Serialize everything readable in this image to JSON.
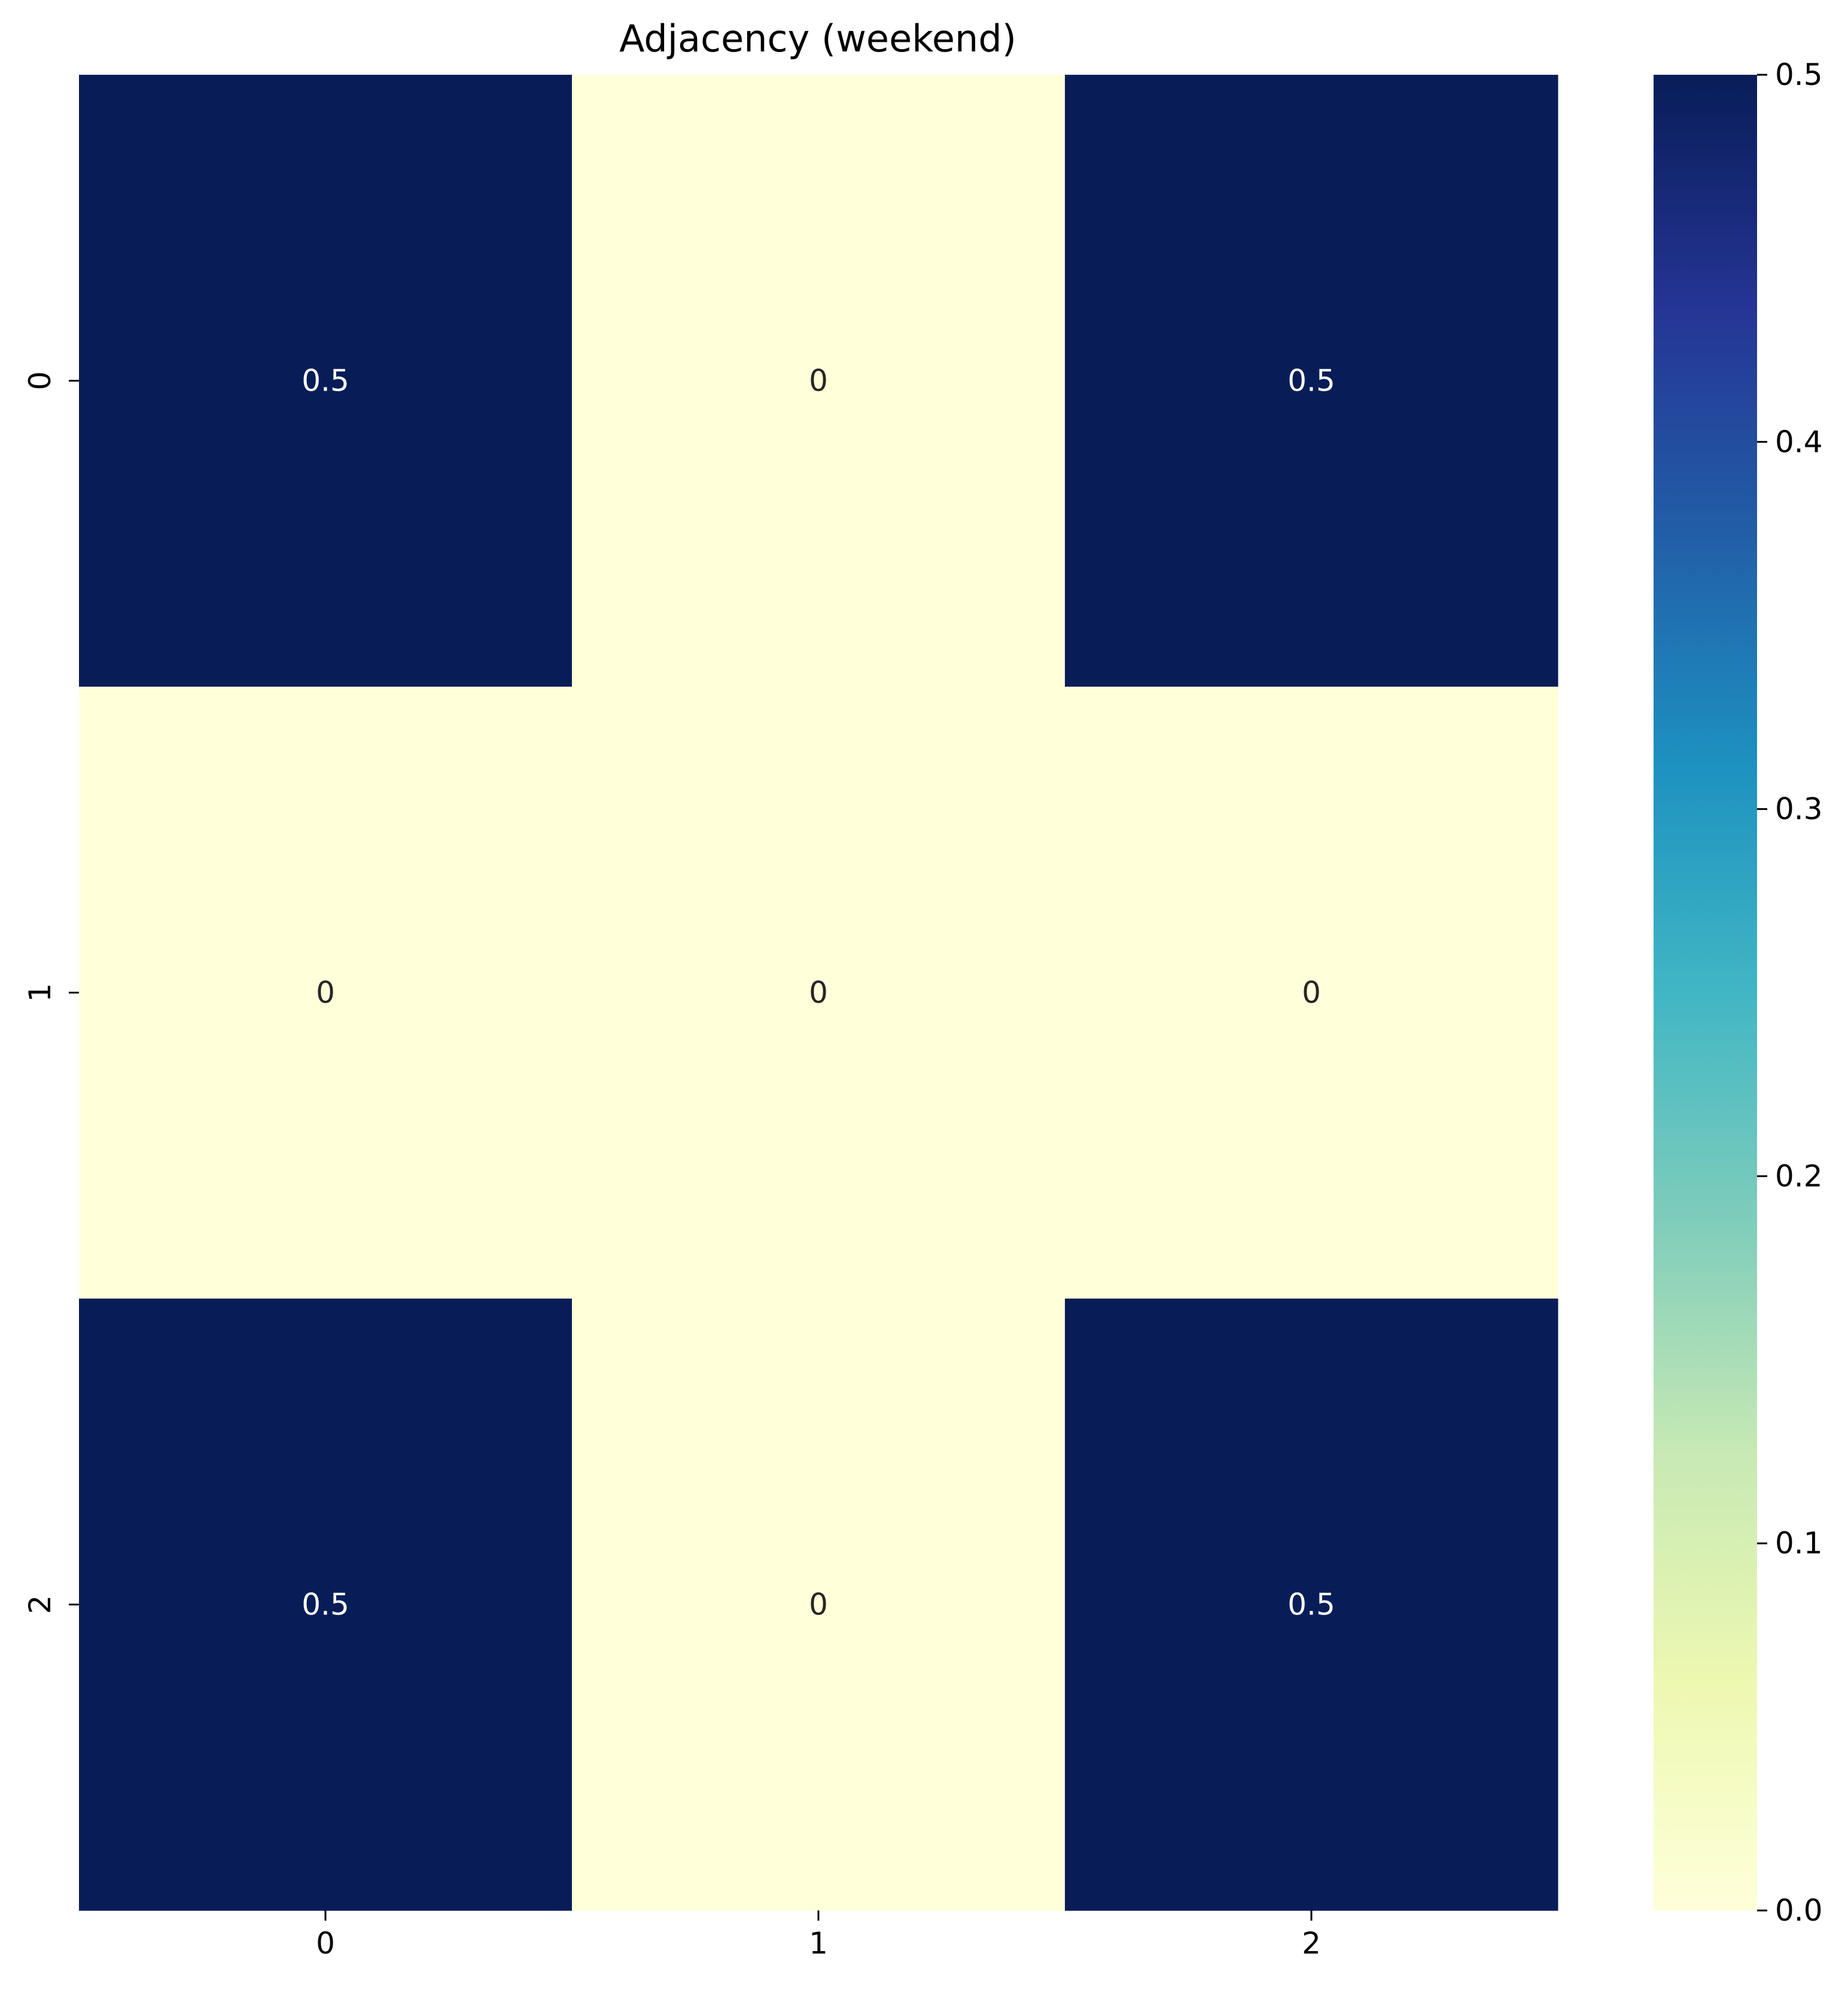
{
  "chart_data": {
    "type": "heatmap",
    "title": "Adjacency (weekend)",
    "xlabel": "",
    "ylabel": "",
    "x_categories": [
      "0",
      "1",
      "2"
    ],
    "y_categories": [
      "0",
      "1",
      "2"
    ],
    "values": [
      [
        0.5,
        0,
        0.5
      ],
      [
        0,
        0,
        0
      ],
      [
        0.5,
        0,
        0.5
      ]
    ],
    "cell_labels": [
      [
        "0.5",
        "0",
        "0.5"
      ],
      [
        "0",
        "0",
        "0"
      ],
      [
        "0.5",
        "0",
        "0.5"
      ]
    ],
    "colormap": "YlGnBu",
    "colorbar": {
      "range": [
        0.0,
        0.5
      ],
      "ticks": [
        0.0,
        0.1,
        0.2,
        0.3,
        0.4,
        0.5
      ],
      "tick_labels": [
        "0.0",
        "0.1",
        "0.2",
        "0.3",
        "0.4",
        "0.5"
      ]
    },
    "colors": {
      "low": "#ffffd9",
      "high": "#081d58"
    },
    "grid": false,
    "legend": "colorbar-right"
  }
}
